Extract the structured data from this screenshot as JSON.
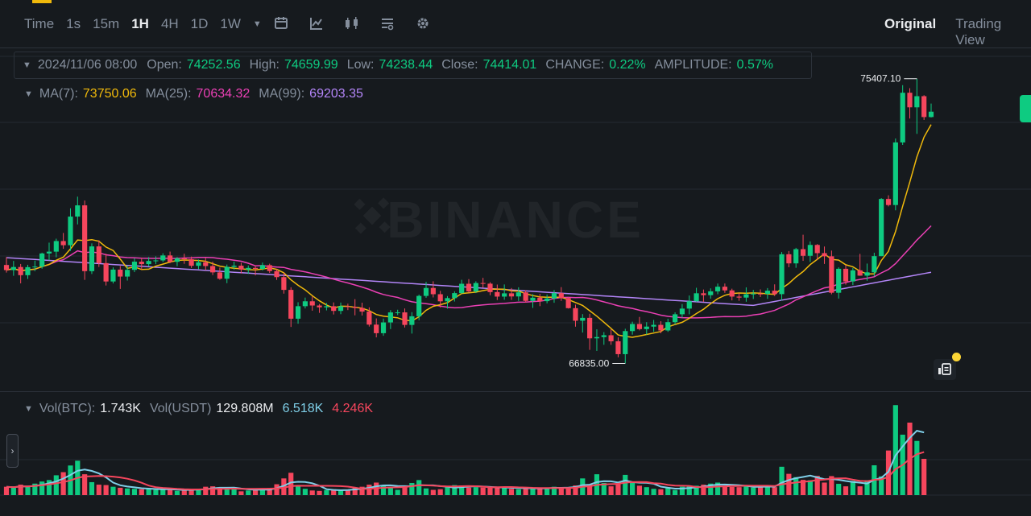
{
  "toolbar": {
    "intervals": [
      "Time",
      "1s",
      "15m",
      "1H",
      "4H",
      "1D",
      "1W"
    ],
    "active_interval": "1H",
    "more_icon": "caret-down-icon",
    "tool_icons": [
      "calendar-icon",
      "indicator-icon",
      "candle-type-icon",
      "layout-icon",
      "gear-icon"
    ],
    "views": [
      "Original",
      "Trading View"
    ],
    "active_view": "Original"
  },
  "ohlc": {
    "date": "2024/11/06 08:00",
    "open_label": "Open:",
    "open": "74252.56",
    "high_label": "High:",
    "high": "74659.99",
    "low_label": "Low:",
    "low": "74238.44",
    "close_label": "Close:",
    "close": "74414.01",
    "change_label": "CHANGE:",
    "change": "0.22%",
    "amplitude_label": "AMPLITUDE:",
    "amplitude": "0.57%"
  },
  "ma": {
    "ma7_label": "MA(7):",
    "ma7": "73750.06",
    "ma25_label": "MA(25):",
    "ma25": "70634.32",
    "ma99_label": "MA(99):",
    "ma99": "69203.35"
  },
  "volume": {
    "btc_label": "Vol(BTC):",
    "btc": "1.743K",
    "usdt_label": "Vol(USDT)",
    "usdt": "129.808M",
    "ma5": "6.518K",
    "ma10": "4.246K"
  },
  "colors": {
    "up": "#0ecb81",
    "down": "#f6465d",
    "ma7": "#f0b90b",
    "ma25": "#eb40b5",
    "ma99": "#b385f8",
    "vol_ma5": "#7fcfe8",
    "vol_ma10": "#f6465d",
    "background": "#161a1e"
  },
  "watermark": "BINANCE",
  "chart_data": {
    "type": "candlestick",
    "interval": "1H",
    "price_range_estimated": [
      66000,
      76200
    ],
    "high_label": "75407.10",
    "low_label": "66835.00",
    "candles": [
      [
        69800,
        70036,
        69570,
        69646
      ],
      [
        69646,
        69922,
        69474,
        69739
      ],
      [
        69739,
        69830,
        69246,
        69493
      ],
      [
        69493,
        69805,
        69379,
        69734
      ],
      [
        69734,
        69932,
        69613,
        69752
      ],
      [
        69752,
        70170,
        69689,
        70146
      ],
      [
        70146,
        70472,
        69941,
        70201
      ],
      [
        70201,
        70591,
        70031,
        70520
      ],
      [
        70520,
        70764,
        70287,
        70395
      ],
      [
        70395,
        71506,
        70224,
        71256
      ],
      [
        71256,
        71856,
        71021,
        71594
      ],
      [
        71594,
        71739,
        69352,
        69614
      ],
      [
        69614,
        70450,
        69528,
        70359
      ],
      [
        70359,
        70542,
        69740,
        69856
      ],
      [
        69856,
        70137,
        69182,
        69303
      ],
      [
        69303,
        69728,
        69244,
        69661
      ],
      [
        69661,
        69770,
        69080,
        69451
      ],
      [
        69451,
        69777,
        69331,
        69653
      ],
      [
        69653,
        70000,
        69584,
        69899
      ],
      [
        69899,
        70023,
        69661,
        69826
      ],
      [
        69826,
        70037,
        69758,
        69920
      ],
      [
        69920,
        70059,
        69825,
        69937
      ],
      [
        69937,
        70151,
        69885,
        70087
      ],
      [
        70087,
        70203,
        69854,
        69895
      ],
      [
        69895,
        70040,
        69763,
        70000
      ],
      [
        70000,
        70139,
        69835,
        69972
      ],
      [
        69972,
        70052,
        69711,
        69775
      ],
      [
        69775,
        69964,
        69676,
        69879
      ],
      [
        69879,
        70025,
        69643,
        69768
      ],
      [
        69768,
        69899,
        69497,
        69577
      ],
      [
        69577,
        69721,
        69354,
        69386
      ],
      [
        69386,
        69812,
        69252,
        69743
      ],
      [
        69743,
        69901,
        69657,
        69778
      ],
      [
        69778,
        69866,
        69546,
        69661
      ],
      [
        69661,
        69785,
        69531,
        69712
      ],
      [
        69712,
        69787,
        69487,
        69683
      ],
      [
        69683,
        69872,
        69632,
        69795
      ],
      [
        69795,
        69838,
        69560,
        69617
      ],
      [
        69617,
        69678,
        69350,
        69434
      ],
      [
        69434,
        69567,
        68937,
        69050
      ],
      [
        69050,
        69130,
        67934,
        68183
      ],
      [
        68183,
        68679,
        68032,
        68559
      ],
      [
        68559,
        68818,
        68491,
        68707
      ],
      [
        68707,
        68848,
        68424,
        68580
      ],
      [
        68580,
        68624,
        68358,
        68525
      ],
      [
        68525,
        68655,
        68433,
        68558
      ],
      [
        68558,
        68673,
        68310,
        68418
      ],
      [
        68418,
        68669,
        68319,
        68557
      ],
      [
        68557,
        68635,
        68442,
        68540
      ],
      [
        68540,
        68771,
        68285,
        68506
      ],
      [
        68506,
        68664,
        68279,
        68397
      ],
      [
        68397,
        68525,
        67946,
        68005
      ],
      [
        68005,
        68191,
        67621,
        67747
      ],
      [
        67747,
        68186,
        67669,
        68071
      ],
      [
        68071,
        68441,
        67871,
        68372
      ],
      [
        68372,
        68453,
        68292,
        68373
      ],
      [
        68373,
        68491,
        67919,
        67996
      ],
      [
        67996,
        68380,
        67735,
        68256
      ],
      [
        68256,
        68908,
        68136,
        68869
      ],
      [
        68869,
        69291,
        68812,
        69108
      ],
      [
        69108,
        69309,
        68823,
        68920
      ],
      [
        68920,
        69021,
        68519,
        68706
      ],
      [
        68706,
        68863,
        68487,
        68803
      ],
      [
        68803,
        69007,
        68700,
        68953
      ],
      [
        68953,
        69354,
        68937,
        69234
      ],
      [
        69234,
        69373,
        68962,
        69005
      ],
      [
        69005,
        69309,
        68955,
        69256
      ],
      [
        69256,
        69412,
        69111,
        69237
      ],
      [
        69237,
        69280,
        68889,
        68984
      ],
      [
        68984,
        69210,
        68745,
        68848
      ],
      [
        68848,
        69214,
        68753,
        68946
      ],
      [
        68946,
        69106,
        68750,
        68853
      ],
      [
        68853,
        69128,
        68718,
        68976
      ],
      [
        68976,
        69040,
        68671,
        68719
      ],
      [
        68719,
        68920,
        68508,
        68815
      ],
      [
        68815,
        68929,
        68561,
        68711
      ],
      [
        68711,
        68912,
        68646,
        68792
      ],
      [
        68792,
        69045,
        68662,
        68952
      ],
      [
        68952,
        69133,
        68719,
        68803
      ],
      [
        68803,
        68830,
        68488,
        68500
      ],
      [
        68500,
        68606,
        67943,
        68121
      ],
      [
        68121,
        68321,
        67766,
        68208
      ],
      [
        68208,
        68331,
        67245,
        67592
      ],
      [
        67592,
        67864,
        67213,
        67630
      ],
      [
        67630,
        67779,
        67398,
        67685
      ],
      [
        67685,
        67863,
        67397,
        67504
      ],
      [
        67504,
        67622,
        67021,
        67116
      ],
      [
        67116,
        67880,
        66835,
        67810
      ],
      [
        67810,
        68093,
        67703,
        68023
      ],
      [
        68023,
        68236,
        67832,
        67870
      ],
      [
        67870,
        68079,
        67702,
        67945
      ],
      [
        67945,
        68145,
        67788,
        67998
      ],
      [
        67998,
        68108,
        67744,
        67829
      ],
      [
        67829,
        68182,
        67787,
        68079
      ],
      [
        68079,
        68373,
        68006,
        68316
      ],
      [
        68316,
        68624,
        68212,
        68487
      ],
      [
        68487,
        68881,
        68315,
        68708
      ],
      [
        68708,
        69113,
        68693,
        68948
      ],
      [
        68948,
        69061,
        68691,
        68892
      ],
      [
        68892,
        69096,
        68785,
        69006
      ],
      [
        69006,
        69241,
        68919,
        69146
      ],
      [
        69146,
        69242,
        68961,
        69035
      ],
      [
        69035,
        69086,
        68734,
        68848
      ],
      [
        68848,
        68955,
        68722,
        68818
      ],
      [
        68818,
        69126,
        68694,
        68918
      ],
      [
        68918,
        69050,
        68777,
        68938
      ],
      [
        68938,
        69065,
        68835,
        68932
      ],
      [
        68932,
        69104,
        68780,
        69026
      ],
      [
        69026,
        69217,
        68866,
        68922
      ],
      [
        68922,
        70189,
        68728,
        70122
      ],
      [
        70122,
        70219,
        69732,
        69848
      ],
      [
        69848,
        70315,
        69715,
        70276
      ],
      [
        70276,
        70710,
        69924,
        70076
      ],
      [
        70076,
        70509,
        69890,
        70403
      ],
      [
        70403,
        70429,
        69956,
        70156
      ],
      [
        70156,
        70355,
        69831,
        70061
      ],
      [
        70061,
        70233,
        68917,
        68964
      ],
      [
        68964,
        69729,
        68789,
        69685
      ],
      [
        69685,
        69800,
        69209,
        69305
      ],
      [
        69305,
        69714,
        69196,
        69639
      ],
      [
        69639,
        70134,
        69473,
        69479
      ],
      [
        69479,
        69842,
        69326,
        69578
      ],
      [
        69578,
        70169,
        69459,
        70066
      ],
      [
        70066,
        71812,
        70064,
        71787
      ],
      [
        71787,
        71897,
        71563,
        71604
      ],
      [
        71604,
        73606,
        71445,
        73488
      ],
      [
        73488,
        75212,
        73414,
        74983
      ],
      [
        74983,
        75121,
        74208,
        74545
      ],
      [
        74545,
        75407,
        73746,
        74880
      ],
      [
        74880,
        74910,
        74166,
        74252
      ],
      [
        74252,
        74660,
        74238,
        74414
      ]
    ],
    "volume_btc": [
      0.4,
      0.35,
      0.5,
      0.4,
      0.55,
      0.65,
      0.72,
      0.95,
      1.1,
      1.42,
      1.65,
      1.0,
      0.62,
      0.5,
      0.48,
      0.4,
      0.35,
      0.32,
      0.3,
      0.28,
      0.3,
      0.25,
      0.26,
      0.3,
      0.2,
      0.22,
      0.28,
      0.3,
      0.4,
      0.42,
      0.36,
      0.28,
      0.33,
      0.18,
      0.22,
      0.26,
      0.3,
      0.34,
      0.52,
      0.8,
      1.07,
      0.45,
      0.3,
      0.22,
      0.2,
      0.24,
      0.28,
      0.22,
      0.26,
      0.35,
      0.4,
      0.5,
      0.6,
      0.46,
      0.38,
      0.25,
      0.46,
      0.58,
      0.72,
      0.32,
      0.25,
      0.28,
      0.44,
      0.48,
      0.46,
      0.36,
      0.38,
      0.36,
      0.4,
      0.36,
      0.34,
      0.3,
      0.28,
      0.38,
      0.32,
      0.3,
      0.34,
      0.4,
      0.38,
      0.36,
      0.46,
      0.8,
      0.5,
      1.0,
      0.58,
      0.42,
      0.52,
      0.97,
      0.62,
      0.45,
      0.38,
      0.3,
      0.28,
      0.34,
      0.24,
      0.4,
      0.42,
      0.45,
      0.5,
      0.55,
      0.6,
      0.43,
      0.39,
      0.38,
      0.42,
      0.36,
      0.42,
      0.44,
      0.38,
      1.36,
      1.02,
      0.86,
      0.73,
      0.71,
      0.92,
      0.6,
      0.91,
      0.54,
      0.42,
      0.68,
      0.42,
      0.71,
      1.43,
      0.9,
      2.14,
      4.32,
      2.9,
      3.48,
      2.6,
      1.74
    ]
  }
}
